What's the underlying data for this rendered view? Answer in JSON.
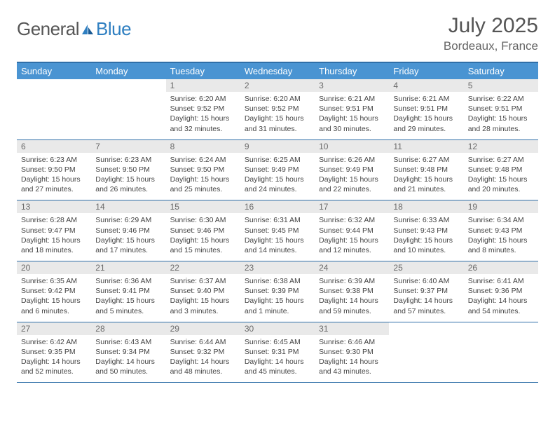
{
  "brand": {
    "part1": "General",
    "part2": "Blue"
  },
  "title": "July 2025",
  "location": "Bordeaux, France",
  "colors": {
    "header_bg": "#4a94d2",
    "header_text": "#ffffff",
    "border": "#2f6fa8",
    "daynum_bg": "#e9e9e9",
    "daynum_text": "#6a6a6a",
    "body_text": "#444444",
    "logo_general": "#565656",
    "logo_blue": "#2f7fc1"
  },
  "typography": {
    "title_fontsize": 30,
    "location_fontsize": 17,
    "header_fontsize": 13,
    "daynum_fontsize": 12,
    "body_fontsize": 10.5
  },
  "day_headers": [
    "Sunday",
    "Monday",
    "Tuesday",
    "Wednesday",
    "Thursday",
    "Friday",
    "Saturday"
  ],
  "weeks": [
    {
      "days": [
        {
          "num": "",
          "sunrise": "",
          "sunset": "",
          "daylight": ""
        },
        {
          "num": "",
          "sunrise": "",
          "sunset": "",
          "daylight": ""
        },
        {
          "num": "1",
          "sunrise": "Sunrise: 6:20 AM",
          "sunset": "Sunset: 9:52 PM",
          "daylight": "Daylight: 15 hours and 32 minutes."
        },
        {
          "num": "2",
          "sunrise": "Sunrise: 6:20 AM",
          "sunset": "Sunset: 9:52 PM",
          "daylight": "Daylight: 15 hours and 31 minutes."
        },
        {
          "num": "3",
          "sunrise": "Sunrise: 6:21 AM",
          "sunset": "Sunset: 9:51 PM",
          "daylight": "Daylight: 15 hours and 30 minutes."
        },
        {
          "num": "4",
          "sunrise": "Sunrise: 6:21 AM",
          "sunset": "Sunset: 9:51 PM",
          "daylight": "Daylight: 15 hours and 29 minutes."
        },
        {
          "num": "5",
          "sunrise": "Sunrise: 6:22 AM",
          "sunset": "Sunset: 9:51 PM",
          "daylight": "Daylight: 15 hours and 28 minutes."
        }
      ]
    },
    {
      "days": [
        {
          "num": "6",
          "sunrise": "Sunrise: 6:23 AM",
          "sunset": "Sunset: 9:50 PM",
          "daylight": "Daylight: 15 hours and 27 minutes."
        },
        {
          "num": "7",
          "sunrise": "Sunrise: 6:23 AM",
          "sunset": "Sunset: 9:50 PM",
          "daylight": "Daylight: 15 hours and 26 minutes."
        },
        {
          "num": "8",
          "sunrise": "Sunrise: 6:24 AM",
          "sunset": "Sunset: 9:50 PM",
          "daylight": "Daylight: 15 hours and 25 minutes."
        },
        {
          "num": "9",
          "sunrise": "Sunrise: 6:25 AM",
          "sunset": "Sunset: 9:49 PM",
          "daylight": "Daylight: 15 hours and 24 minutes."
        },
        {
          "num": "10",
          "sunrise": "Sunrise: 6:26 AM",
          "sunset": "Sunset: 9:49 PM",
          "daylight": "Daylight: 15 hours and 22 minutes."
        },
        {
          "num": "11",
          "sunrise": "Sunrise: 6:27 AM",
          "sunset": "Sunset: 9:48 PM",
          "daylight": "Daylight: 15 hours and 21 minutes."
        },
        {
          "num": "12",
          "sunrise": "Sunrise: 6:27 AM",
          "sunset": "Sunset: 9:48 PM",
          "daylight": "Daylight: 15 hours and 20 minutes."
        }
      ]
    },
    {
      "days": [
        {
          "num": "13",
          "sunrise": "Sunrise: 6:28 AM",
          "sunset": "Sunset: 9:47 PM",
          "daylight": "Daylight: 15 hours and 18 minutes."
        },
        {
          "num": "14",
          "sunrise": "Sunrise: 6:29 AM",
          "sunset": "Sunset: 9:46 PM",
          "daylight": "Daylight: 15 hours and 17 minutes."
        },
        {
          "num": "15",
          "sunrise": "Sunrise: 6:30 AM",
          "sunset": "Sunset: 9:46 PM",
          "daylight": "Daylight: 15 hours and 15 minutes."
        },
        {
          "num": "16",
          "sunrise": "Sunrise: 6:31 AM",
          "sunset": "Sunset: 9:45 PM",
          "daylight": "Daylight: 15 hours and 14 minutes."
        },
        {
          "num": "17",
          "sunrise": "Sunrise: 6:32 AM",
          "sunset": "Sunset: 9:44 PM",
          "daylight": "Daylight: 15 hours and 12 minutes."
        },
        {
          "num": "18",
          "sunrise": "Sunrise: 6:33 AM",
          "sunset": "Sunset: 9:43 PM",
          "daylight": "Daylight: 15 hours and 10 minutes."
        },
        {
          "num": "19",
          "sunrise": "Sunrise: 6:34 AM",
          "sunset": "Sunset: 9:43 PM",
          "daylight": "Daylight: 15 hours and 8 minutes."
        }
      ]
    },
    {
      "days": [
        {
          "num": "20",
          "sunrise": "Sunrise: 6:35 AM",
          "sunset": "Sunset: 9:42 PM",
          "daylight": "Daylight: 15 hours and 6 minutes."
        },
        {
          "num": "21",
          "sunrise": "Sunrise: 6:36 AM",
          "sunset": "Sunset: 9:41 PM",
          "daylight": "Daylight: 15 hours and 5 minutes."
        },
        {
          "num": "22",
          "sunrise": "Sunrise: 6:37 AM",
          "sunset": "Sunset: 9:40 PM",
          "daylight": "Daylight: 15 hours and 3 minutes."
        },
        {
          "num": "23",
          "sunrise": "Sunrise: 6:38 AM",
          "sunset": "Sunset: 9:39 PM",
          "daylight": "Daylight: 15 hours and 1 minute."
        },
        {
          "num": "24",
          "sunrise": "Sunrise: 6:39 AM",
          "sunset": "Sunset: 9:38 PM",
          "daylight": "Daylight: 14 hours and 59 minutes."
        },
        {
          "num": "25",
          "sunrise": "Sunrise: 6:40 AM",
          "sunset": "Sunset: 9:37 PM",
          "daylight": "Daylight: 14 hours and 57 minutes."
        },
        {
          "num": "26",
          "sunrise": "Sunrise: 6:41 AM",
          "sunset": "Sunset: 9:36 PM",
          "daylight": "Daylight: 14 hours and 54 minutes."
        }
      ]
    },
    {
      "days": [
        {
          "num": "27",
          "sunrise": "Sunrise: 6:42 AM",
          "sunset": "Sunset: 9:35 PM",
          "daylight": "Daylight: 14 hours and 52 minutes."
        },
        {
          "num": "28",
          "sunrise": "Sunrise: 6:43 AM",
          "sunset": "Sunset: 9:34 PM",
          "daylight": "Daylight: 14 hours and 50 minutes."
        },
        {
          "num": "29",
          "sunrise": "Sunrise: 6:44 AM",
          "sunset": "Sunset: 9:32 PM",
          "daylight": "Daylight: 14 hours and 48 minutes."
        },
        {
          "num": "30",
          "sunrise": "Sunrise: 6:45 AM",
          "sunset": "Sunset: 9:31 PM",
          "daylight": "Daylight: 14 hours and 45 minutes."
        },
        {
          "num": "31",
          "sunrise": "Sunrise: 6:46 AM",
          "sunset": "Sunset: 9:30 PM",
          "daylight": "Daylight: 14 hours and 43 minutes."
        },
        {
          "num": "",
          "sunrise": "",
          "sunset": "",
          "daylight": ""
        },
        {
          "num": "",
          "sunrise": "",
          "sunset": "",
          "daylight": ""
        }
      ]
    }
  ]
}
